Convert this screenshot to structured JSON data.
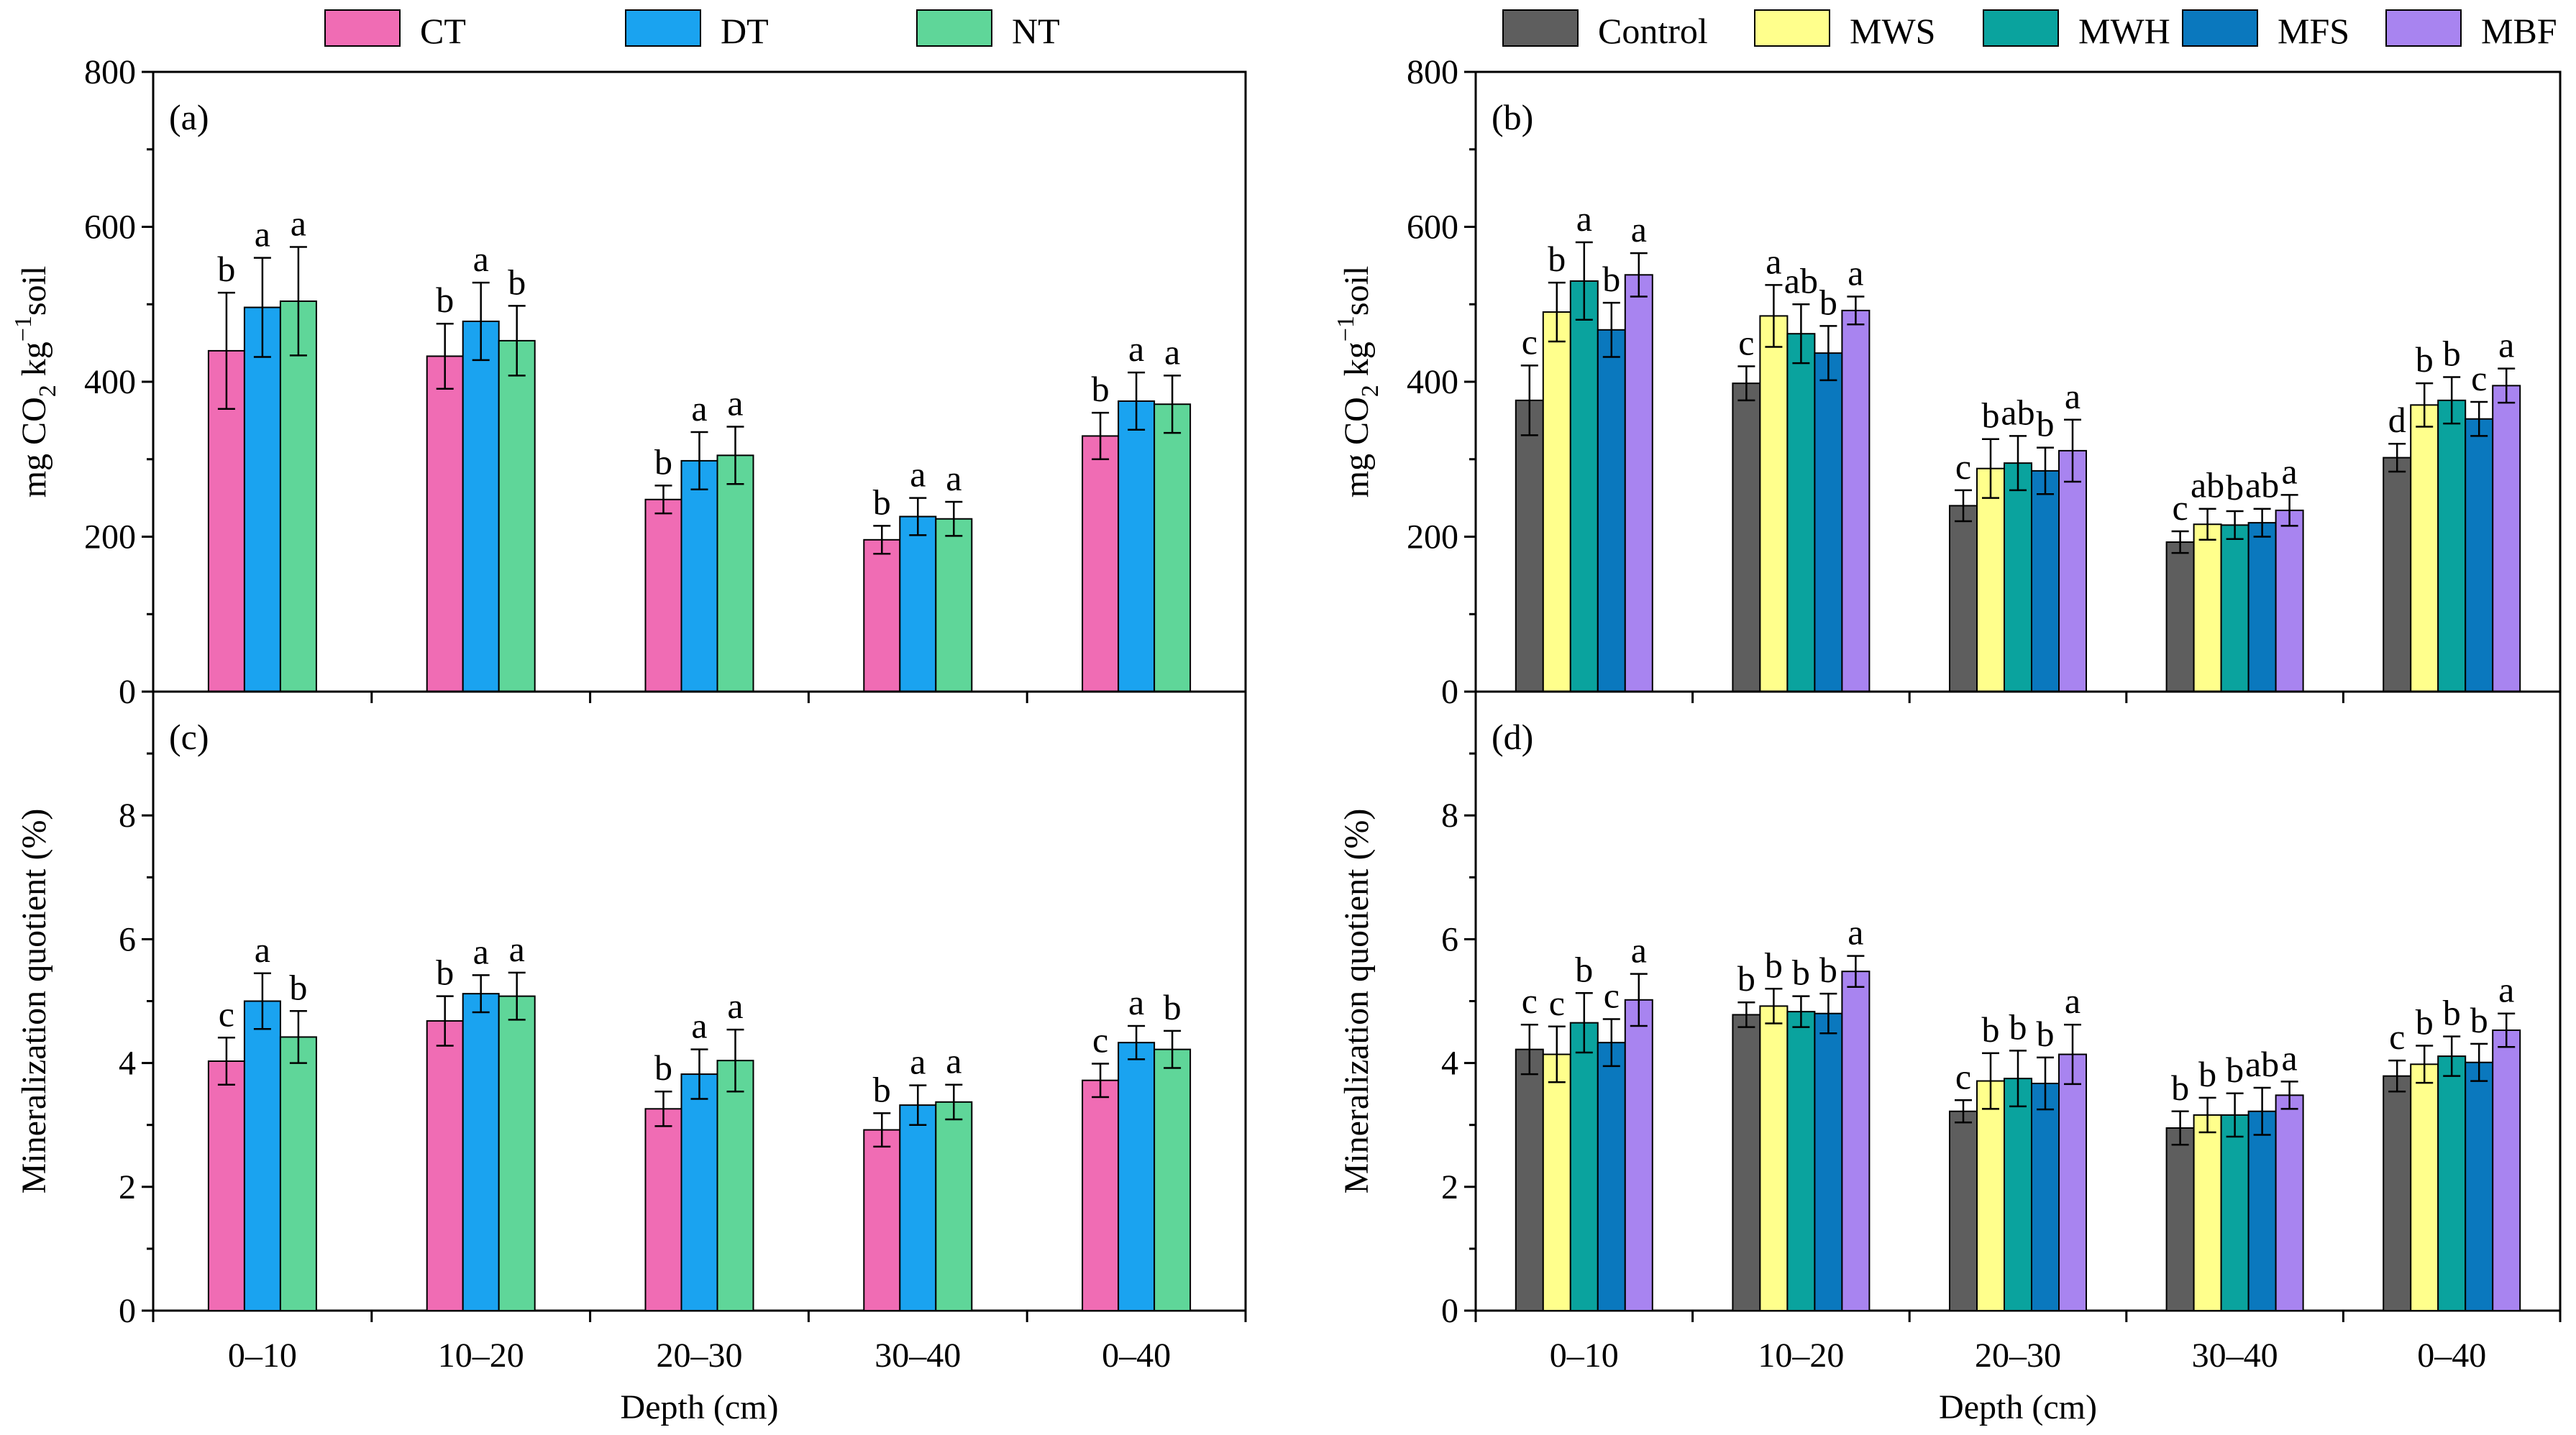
{
  "figure_legends": {
    "left": [
      {
        "name": "CT",
        "color": "#f06cb4"
      },
      {
        "name": "DT",
        "color": "#1aa3f0"
      },
      {
        "name": "NT",
        "color": "#5fd699"
      }
    ],
    "right": [
      {
        "name": "Control",
        "color": "#5e5e5e"
      },
      {
        "name": "MWS",
        "color": "#ffff8c"
      },
      {
        "name": "MWH",
        "color": "#0aa39e"
      },
      {
        "name": "MFS",
        "color": "#0a78be"
      },
      {
        "name": "MBF",
        "color": "#a884f0"
      }
    ]
  },
  "chart_data": [
    {
      "id": "a",
      "panel_label": "(a)",
      "type": "bar",
      "categories": [
        "0–10",
        "10–20",
        "20–30",
        "30–40",
        "0–40"
      ],
      "series": [
        {
          "name": "CT",
          "values": [
            440,
            433,
            248,
            196,
            330
          ],
          "errors": [
            75,
            42,
            18,
            18,
            30
          ],
          "letters": [
            "b",
            "b",
            "b",
            "b",
            "b"
          ]
        },
        {
          "name": "DT",
          "values": [
            496,
            478,
            298,
            226,
            375
          ],
          "errors": [
            64,
            50,
            37,
            24,
            37
          ],
          "letters": [
            "a",
            "a",
            "a",
            "a",
            "a"
          ]
        },
        {
          "name": "NT",
          "values": [
            504,
            453,
            305,
            223,
            371
          ],
          "errors": [
            70,
            45,
            37,
            22,
            37
          ],
          "letters": [
            "a",
            "b",
            "a",
            "a",
            "a"
          ]
        }
      ],
      "ylabel": "mg CO",
      "ylabel_sub": "2",
      "ylabel_mid": " kg",
      "ylabel_sup": "−1",
      "ylabel_end": "soil",
      "xlabel": "",
      "ylim": [
        0,
        800
      ],
      "yticks": [
        "0",
        "200",
        "400",
        "600",
        "800"
      ]
    },
    {
      "id": "b",
      "panel_label": "(b)",
      "type": "bar",
      "categories": [
        "0–10",
        "10–20",
        "20–30",
        "30–40",
        "0–40"
      ],
      "series": [
        {
          "name": "Control",
          "values": [
            376,
            398,
            240,
            193,
            302
          ],
          "errors": [
            45,
            22,
            20,
            14,
            18
          ],
          "letters": [
            "c",
            "c",
            "c",
            "c",
            "d"
          ]
        },
        {
          "name": "MWS",
          "values": [
            490,
            485,
            288,
            216,
            370
          ],
          "errors": [
            38,
            40,
            38,
            20,
            28
          ],
          "letters": [
            "b",
            "a",
            "b",
            "ab",
            "b"
          ]
        },
        {
          "name": "MWH",
          "values": [
            530,
            462,
            295,
            215,
            376
          ],
          "errors": [
            50,
            38,
            35,
            18,
            30
          ],
          "letters": [
            "a",
            "ab",
            "ab",
            "b",
            "b"
          ]
        },
        {
          "name": "MFS",
          "values": [
            467,
            437,
            285,
            218,
            352
          ],
          "errors": [
            35,
            35,
            30,
            18,
            22
          ],
          "letters": [
            "b",
            "b",
            "b",
            "ab",
            "c"
          ]
        },
        {
          "name": "MBF",
          "values": [
            538,
            492,
            311,
            234,
            395
          ],
          "errors": [
            28,
            18,
            40,
            20,
            22
          ],
          "letters": [
            "a",
            "a",
            "a",
            "a",
            "a"
          ]
        }
      ],
      "ylabel": "mg CO",
      "ylabel_sub": "2",
      "ylabel_mid": " kg",
      "ylabel_sup": "−1",
      "ylabel_end": "soil",
      "xlabel": "",
      "ylim": [
        0,
        800
      ],
      "yticks": [
        "0",
        "200",
        "400",
        "600",
        "800"
      ]
    },
    {
      "id": "c",
      "panel_label": "(c)",
      "type": "bar",
      "categories": [
        "0–10",
        "10–20",
        "20–30",
        "30–40",
        "0–40"
      ],
      "series": [
        {
          "name": "CT",
          "values": [
            4.03,
            4.68,
            3.26,
            2.92,
            3.72
          ],
          "errors": [
            0.38,
            0.4,
            0.28,
            0.27,
            0.27
          ],
          "letters": [
            "c",
            "b",
            "b",
            "b",
            "c"
          ]
        },
        {
          "name": "DT",
          "values": [
            5.0,
            5.12,
            3.82,
            3.32,
            4.33
          ],
          "errors": [
            0.45,
            0.3,
            0.4,
            0.32,
            0.27
          ],
          "letters": [
            "a",
            "a",
            "a",
            "a",
            "a"
          ]
        },
        {
          "name": "NT",
          "values": [
            4.42,
            5.08,
            4.04,
            3.37,
            4.22
          ],
          "errors": [
            0.42,
            0.38,
            0.5,
            0.28,
            0.3
          ],
          "letters": [
            "b",
            "a",
            "a",
            "a",
            "b"
          ]
        }
      ],
      "ylabel": "Mineralization quotient (%)",
      "xlabel": "Depth (cm)",
      "ylim": [
        0,
        10
      ],
      "yticks": [
        "0",
        "2",
        "4",
        "6",
        "8"
      ]
    },
    {
      "id": "d",
      "panel_label": "(d)",
      "type": "bar",
      "categories": [
        "0–10",
        "10–20",
        "20–30",
        "30–40",
        "0–40"
      ],
      "series": [
        {
          "name": "Control",
          "values": [
            4.22,
            4.78,
            3.22,
            2.95,
            3.79
          ],
          "errors": [
            0.4,
            0.2,
            0.18,
            0.27,
            0.25
          ],
          "letters": [
            "c",
            "b",
            "c",
            "b",
            "c"
          ]
        },
        {
          "name": "MWS",
          "values": [
            4.14,
            4.92,
            3.71,
            3.16,
            3.98
          ],
          "errors": [
            0.45,
            0.28,
            0.45,
            0.28,
            0.3
          ],
          "letters": [
            "c",
            "b",
            "b",
            "b",
            "b"
          ]
        },
        {
          "name": "MWH",
          "values": [
            4.65,
            4.83,
            3.75,
            3.16,
            4.11
          ],
          "errors": [
            0.48,
            0.25,
            0.45,
            0.35,
            0.32
          ],
          "letters": [
            "b",
            "b",
            "b",
            "b",
            "b"
          ]
        },
        {
          "name": "MFS",
          "values": [
            4.33,
            4.8,
            3.67,
            3.22,
            4.01
          ],
          "errors": [
            0.38,
            0.32,
            0.42,
            0.38,
            0.3
          ],
          "letters": [
            "c",
            "b",
            "b",
            "ab",
            "b"
          ]
        },
        {
          "name": "MBF",
          "values": [
            5.02,
            5.48,
            4.14,
            3.48,
            4.53
          ],
          "errors": [
            0.42,
            0.25,
            0.48,
            0.22,
            0.27
          ],
          "letters": [
            "a",
            "a",
            "a",
            "a",
            "a"
          ]
        }
      ],
      "ylabel": "Mineralization quotient (%)",
      "xlabel": "Depth (cm)",
      "ylim": [
        0,
        10
      ],
      "yticks": [
        "0",
        "2",
        "4",
        "6",
        "8"
      ]
    }
  ]
}
